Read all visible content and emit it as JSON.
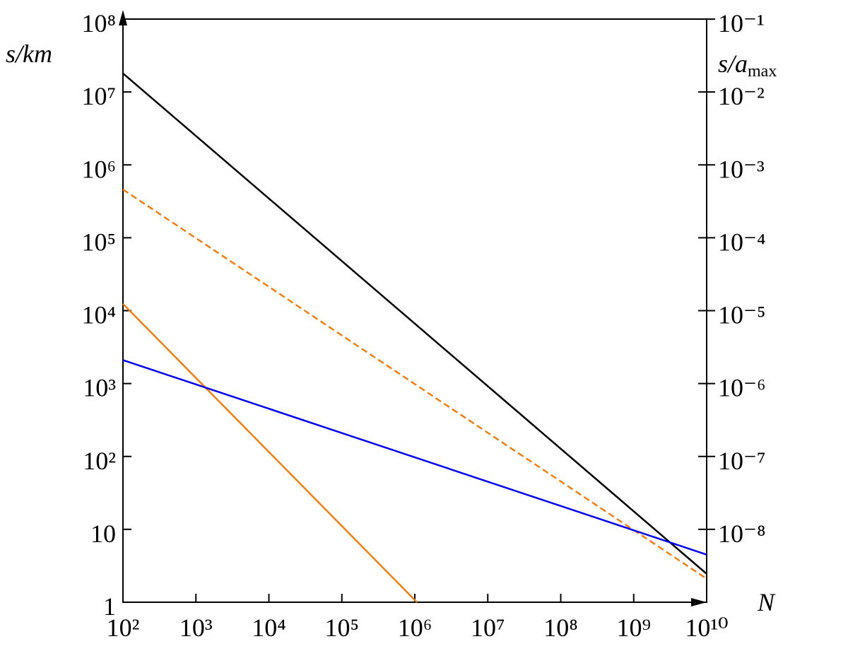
{
  "chart_data": {
    "type": "line",
    "log_x": true,
    "log_y": true,
    "x_label": "N",
    "y_label": "s/km",
    "y2_label": {
      "text": "s/a",
      "subscript": "max"
    },
    "xlim": [
      100,
      10000000000
    ],
    "xticks": [
      {
        "value": 100,
        "label": "10²"
      },
      {
        "value": 1000,
        "label": "10³"
      },
      {
        "value": 10000,
        "label": "10⁴"
      },
      {
        "value": 100000,
        "label": "10⁵"
      },
      {
        "value": 1000000,
        "label": "10⁶"
      },
      {
        "value": 10000000,
        "label": "10⁷"
      },
      {
        "value": 100000000,
        "label": "10⁸"
      },
      {
        "value": 1000000000,
        "label": "10⁹"
      },
      {
        "value": 10000000000,
        "label": "10¹⁰"
      }
    ],
    "ylim": [
      1,
      100000000
    ],
    "yticks": [
      1,
      10,
      {
        "value": 100,
        "label": "10²"
      },
      {
        "value": 1000,
        "label": "10³"
      },
      {
        "value": 10000,
        "label": "10⁴"
      },
      {
        "value": 100000,
        "label": "10⁵"
      },
      {
        "value": 1000000,
        "label": "10⁶"
      },
      {
        "value": 10000000,
        "label": "10⁷"
      },
      {
        "value": 100000000,
        "label": "10⁸"
      }
    ],
    "y2lim": [
      1e-09,
      0.1
    ],
    "y2ticks": [
      {
        "value": 0.1,
        "label": "10⁻¹"
      },
      {
        "value": 0.01,
        "label": "10⁻²"
      },
      {
        "value": 0.001,
        "label": "10⁻³"
      },
      {
        "value": 0.0001,
        "label": "10⁻⁴"
      },
      {
        "value": 1e-05,
        "label": "10⁻⁵"
      },
      {
        "value": 1e-06,
        "label": "10⁻⁶"
      },
      {
        "value": 1e-07,
        "label": "10⁻⁷"
      },
      {
        "value": 1e-08,
        "label": "10⁻⁸"
      }
    ],
    "series": [
      {
        "color": "#000000",
        "dash": false,
        "x": [
          100,
          10000000000
        ],
        "values": [
          18000000,
          2.45
        ]
      },
      {
        "color": "#f07f10",
        "dash": true,
        "x": [
          100,
          10000000000
        ],
        "values": [
          460000,
          2.1
        ]
      },
      {
        "color": "#f07f10",
        "dash": false,
        "x": [
          100,
          1070000
        ],
        "values": [
          12400,
          1
        ]
      },
      {
        "color": "#0000ee",
        "dash": false,
        "x": [
          100,
          10000000000
        ],
        "values": [
          2100,
          4.5
        ]
      }
    ]
  }
}
